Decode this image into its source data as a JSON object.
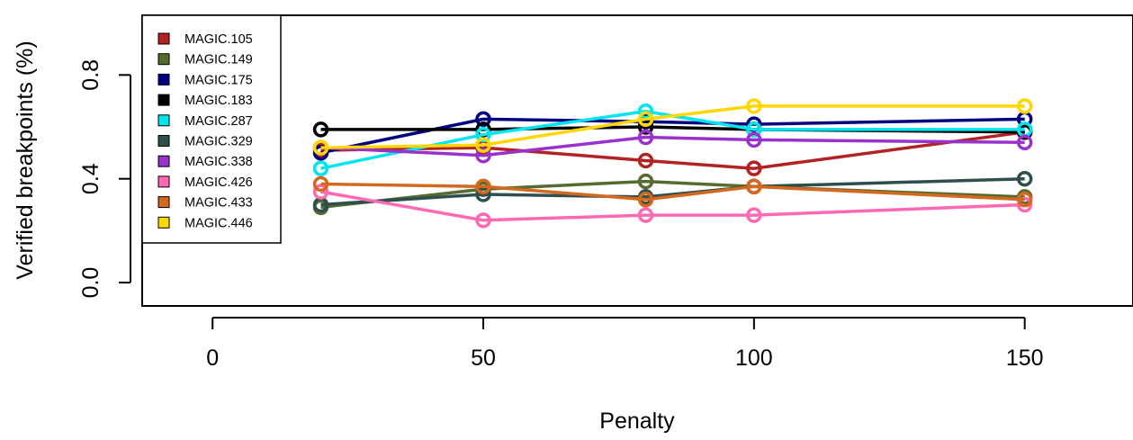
{
  "chart_data": {
    "type": "line",
    "xlabel": "Penalty",
    "ylabel": "Verified breakpoints (%)",
    "xlim": [
      -13,
      170
    ],
    "ylim": [
      -0.09,
      1.03
    ],
    "xticks": [
      0,
      50,
      100,
      150
    ],
    "yticks": [
      0.0,
      0.4,
      0.8
    ],
    "xtick_labels": [
      "0",
      "50",
      "100",
      "150"
    ],
    "ytick_labels": [
      "0.0",
      "0.4",
      "0.8"
    ],
    "grid": false,
    "legend_position": "top-left",
    "x": [
      20,
      50,
      80,
      100,
      150
    ],
    "series": [
      {
        "name": "MAGIC.105",
        "color": "#b22222",
        "values": [
          0.51,
          0.52,
          0.47,
          0.44,
          0.58
        ]
      },
      {
        "name": "MAGIC.149",
        "color": "#556b2f",
        "values": [
          0.29,
          0.36,
          0.39,
          0.37,
          0.33
        ]
      },
      {
        "name": "MAGIC.175",
        "color": "#000080",
        "values": [
          0.5,
          0.63,
          0.62,
          0.61,
          0.63
        ]
      },
      {
        "name": "MAGIC.183",
        "color": "#000000",
        "values": [
          0.59,
          0.59,
          0.6,
          0.59,
          0.58
        ]
      },
      {
        "name": "MAGIC.287",
        "color": "#00e5ee",
        "values": [
          0.44,
          0.57,
          0.66,
          0.59,
          0.59
        ]
      },
      {
        "name": "MAGIC.329",
        "color": "#2f4f4f",
        "values": [
          0.3,
          0.34,
          0.33,
          0.37,
          0.4
        ]
      },
      {
        "name": "MAGIC.338",
        "color": "#9932cc",
        "values": [
          0.52,
          0.49,
          0.56,
          0.55,
          0.54
        ]
      },
      {
        "name": "MAGIC.426",
        "color": "#ff69b4",
        "values": [
          0.35,
          0.24,
          0.26,
          0.26,
          0.3
        ]
      },
      {
        "name": "MAGIC.433",
        "color": "#d2691e",
        "values": [
          0.38,
          0.37,
          0.32,
          0.37,
          0.32
        ]
      },
      {
        "name": "MAGIC.446",
        "color": "#ffd700",
        "values": [
          0.52,
          0.53,
          0.63,
          0.68,
          0.68
        ]
      }
    ]
  }
}
